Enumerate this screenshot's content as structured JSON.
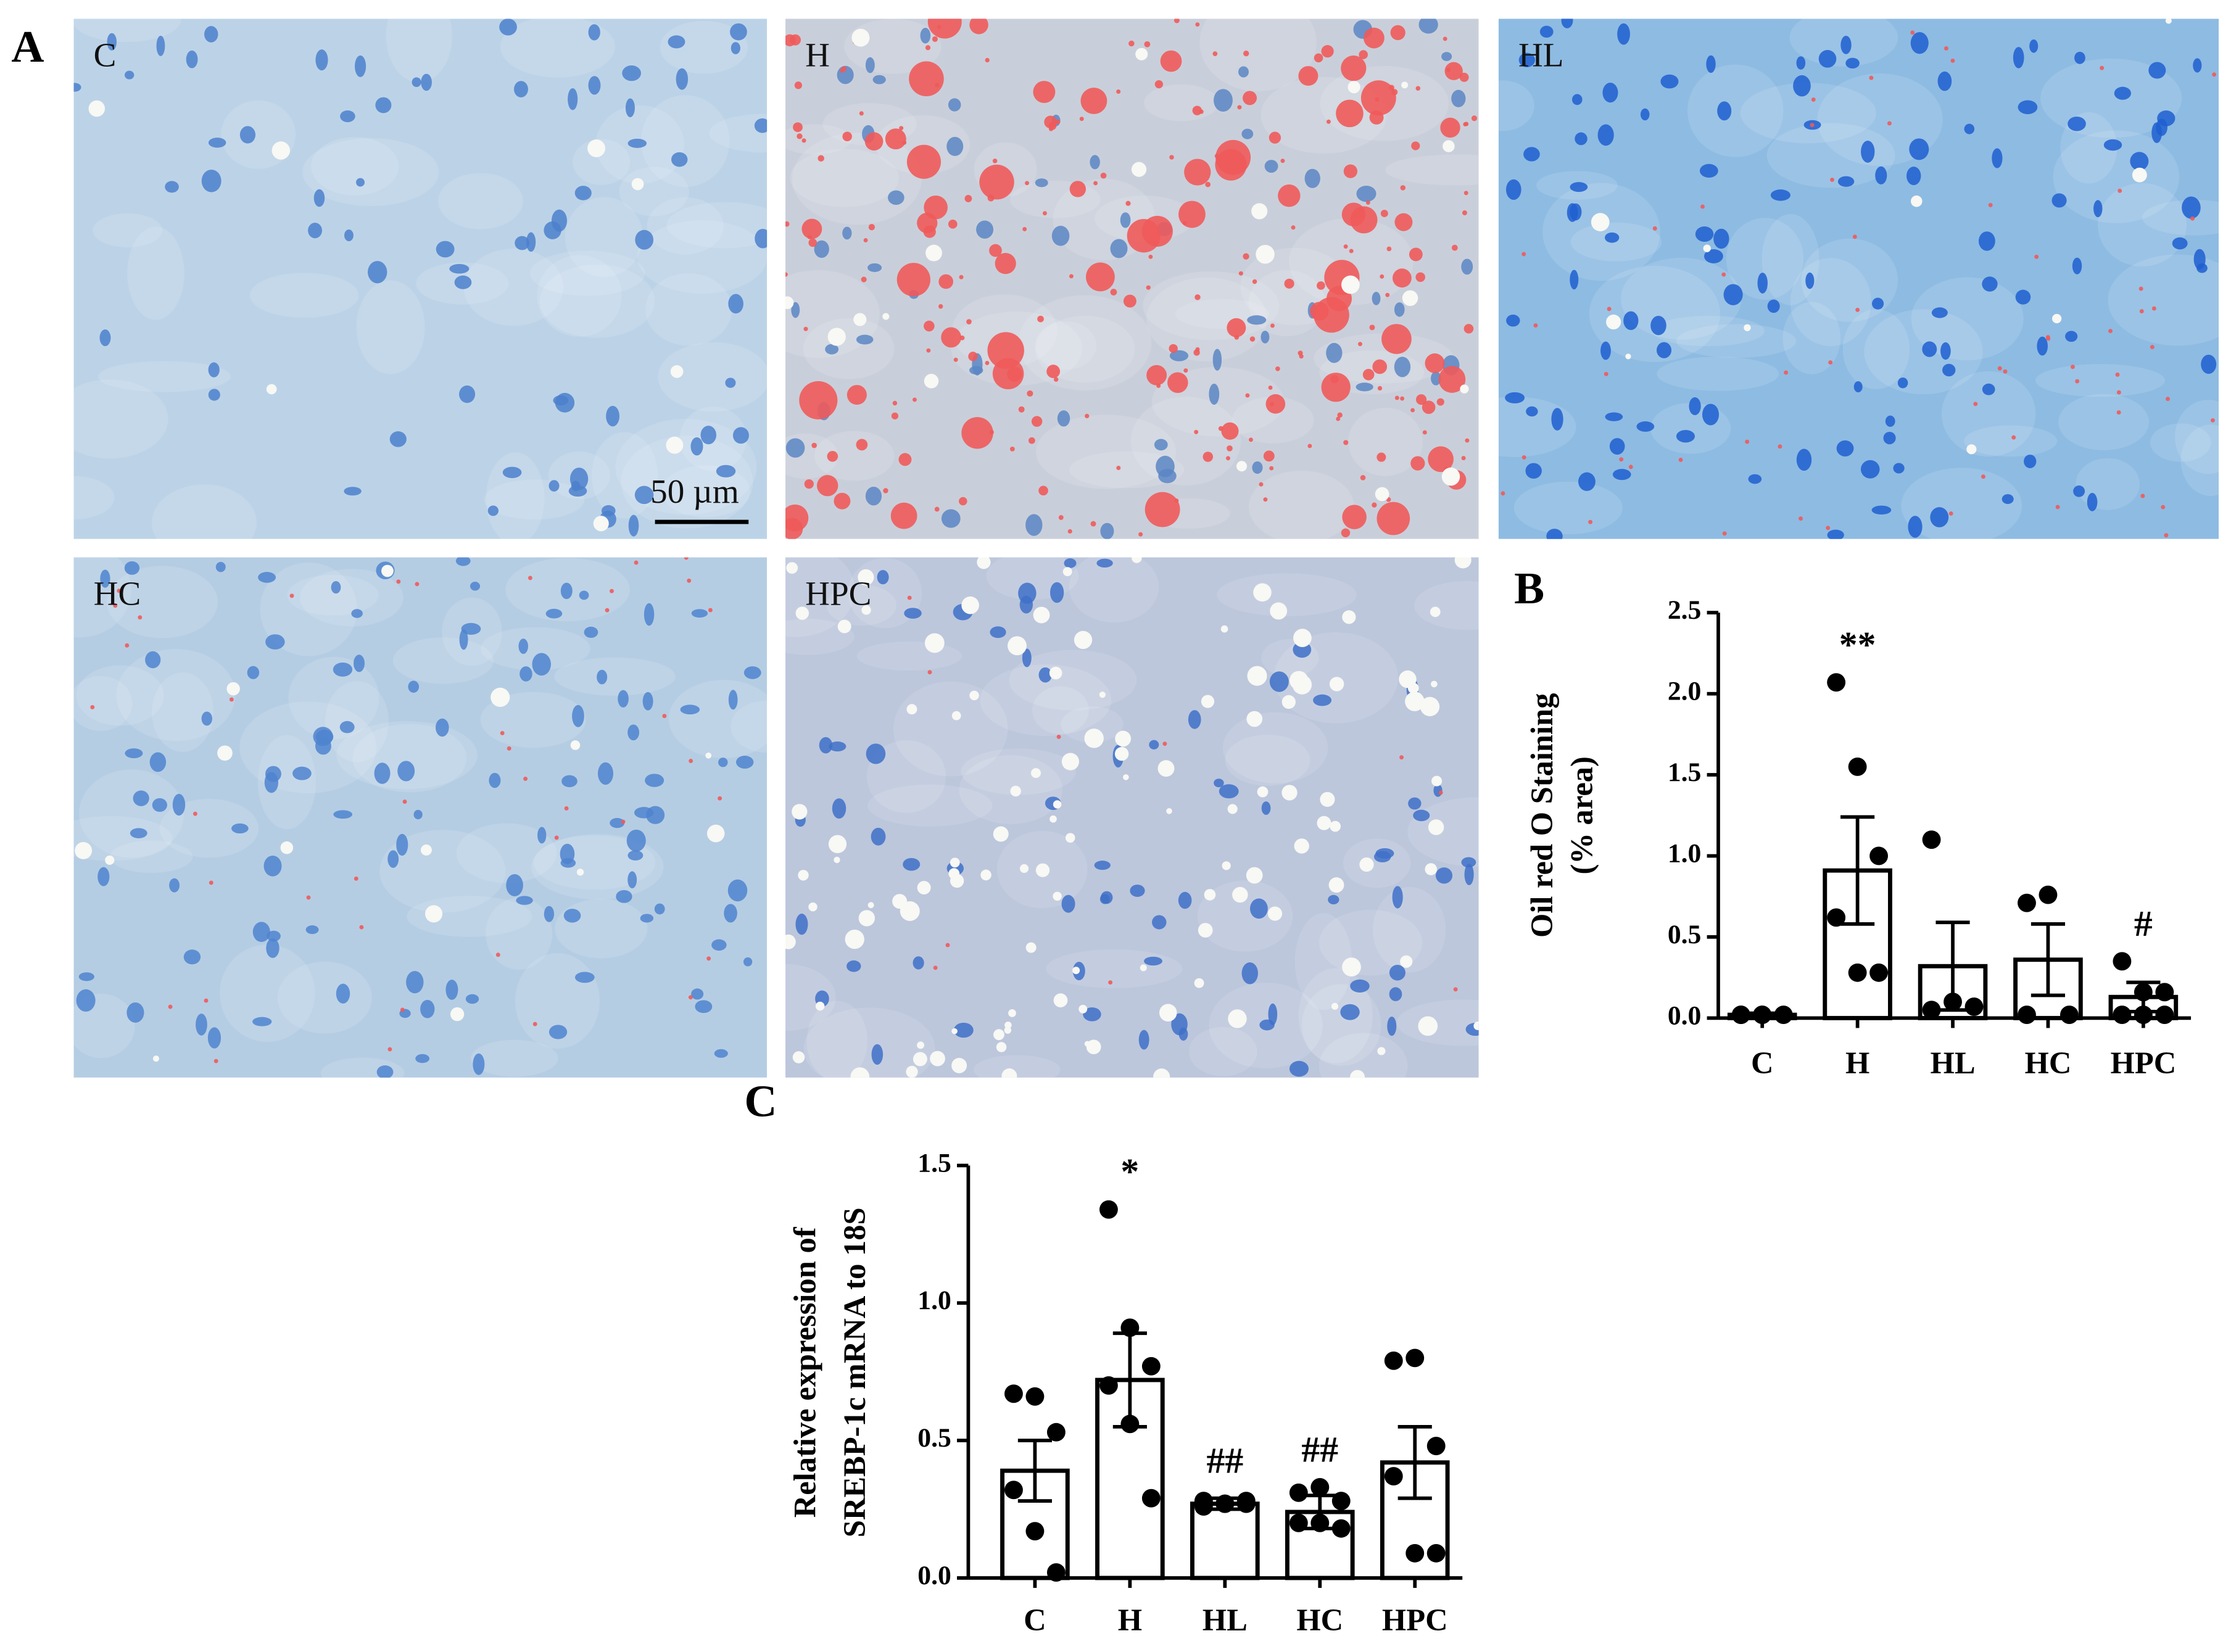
{
  "figure": {
    "panel_a": {
      "label": "A",
      "images": [
        {
          "label": "C"
        },
        {
          "label": "H"
        },
        {
          "label": "HL"
        },
        {
          "label": "HC"
        },
        {
          "label": "HPC"
        }
      ],
      "scale_bar": "50 µm"
    }
  },
  "chart_data": [
    {
      "type": "bar",
      "panel": "B",
      "ylabel": [
        "Oil red O Staining",
        "(% area)"
      ],
      "categories": [
        "C",
        "H",
        "HL",
        "HC",
        "HPC"
      ],
      "values": [
        0.02,
        0.91,
        0.32,
        0.36,
        0.13
      ],
      "errors": [
        0.01,
        0.33,
        0.27,
        0.22,
        0.09
      ],
      "points": [
        [
          0.02,
          0.02,
          0.02,
          0.02,
          0.02
        ],
        [
          2.07,
          1.55,
          1.0,
          0.62,
          0.28,
          0.28
        ],
        [
          1.1,
          0.1,
          0.07,
          0.05
        ],
        [
          0.71,
          0.76,
          0.02,
          0.02
        ],
        [
          0.35,
          0.16,
          0.16,
          0.02,
          0.02,
          0.02
        ]
      ],
      "annotations": [
        {
          "category": "H",
          "text": "**"
        },
        {
          "category": "HPC",
          "text": "#"
        }
      ],
      "color": "#000000",
      "ylim": [
        0,
        2.5
      ],
      "yticks": [
        {
          "value": 0,
          "label": "0.0"
        },
        0.5,
        {
          "value": 1,
          "label": "1.0"
        },
        1.5,
        {
          "value": 2,
          "label": "2.0"
        },
        2.5
      ]
    },
    {
      "type": "bar",
      "panel": "C",
      "ylabel": [
        "Relative expression of",
        "SREBP-1c mRNA to 18S"
      ],
      "categories": [
        "C",
        "H",
        "HL",
        "HC",
        "HPC"
      ],
      "values": [
        0.39,
        0.72,
        0.27,
        0.24,
        0.42
      ],
      "errors": [
        0.11,
        0.17,
        0.02,
        0.06,
        0.13
      ],
      "points": [
        [
          0.67,
          0.66,
          0.53,
          0.32,
          0.17,
          0.02
        ],
        [
          1.34,
          0.91,
          0.77,
          0.7,
          0.56,
          0.29
        ],
        [
          0.28,
          0.27,
          0.27,
          0.26,
          0.27,
          0.28
        ],
        [
          0.31,
          0.33,
          0.28,
          0.2,
          0.2,
          0.18
        ],
        [
          0.79,
          0.8,
          0.48,
          0.37,
          0.09,
          0.09
        ]
      ],
      "annotations": [
        {
          "category": "H",
          "text": "*"
        },
        {
          "category": "HL",
          "text": "##"
        },
        {
          "category": "HC",
          "text": "##"
        }
      ],
      "color": "#000000",
      "ylim": [
        0,
        1.5
      ],
      "yticks": [
        {
          "value": 0,
          "label": "0.0"
        },
        0.5,
        {
          "value": 1,
          "label": "1.0"
        },
        1.5
      ]
    }
  ]
}
